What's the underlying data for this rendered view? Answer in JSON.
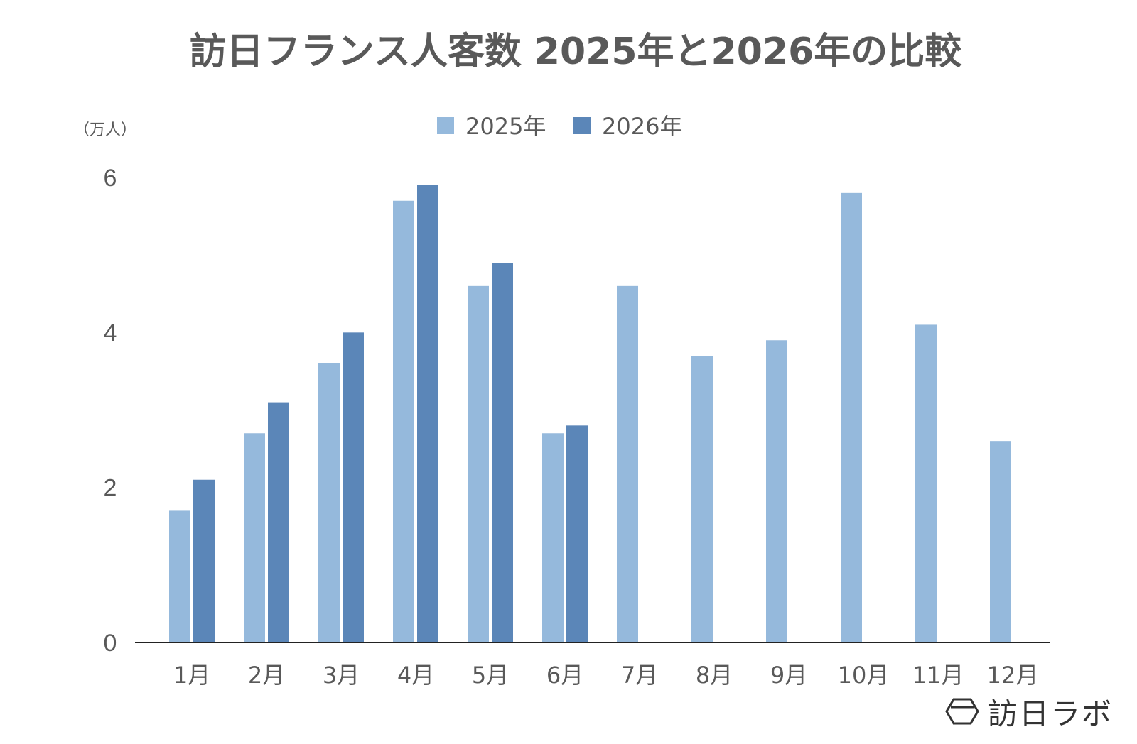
{
  "chart_data": {
    "type": "bar",
    "title": "訪日フランス人客数 2025年と2026年の比較",
    "ylabel": "（万人）",
    "xlabel": "",
    "categories": [
      "1月",
      "2月",
      "3月",
      "4月",
      "5月",
      "6月",
      "7月",
      "8月",
      "9月",
      "10月",
      "11月",
      "12月"
    ],
    "series": [
      {
        "name": "2025年",
        "color": "#95b9dc",
        "values": [
          1.7,
          2.7,
          3.6,
          5.7,
          4.6,
          2.7,
          4.6,
          3.7,
          3.9,
          5.8,
          4.1,
          2.6
        ]
      },
      {
        "name": "2026年",
        "color": "#5b86b8",
        "values": [
          2.1,
          3.1,
          4.0,
          5.9,
          4.9,
          2.8,
          null,
          null,
          null,
          null,
          null,
          null
        ]
      }
    ],
    "ylim": [
      0,
      6
    ],
    "yticks": [
      0,
      2,
      4,
      6
    ],
    "grid": false,
    "legend_position": "top-center"
  },
  "brand": {
    "name": "訪日ラボ"
  }
}
